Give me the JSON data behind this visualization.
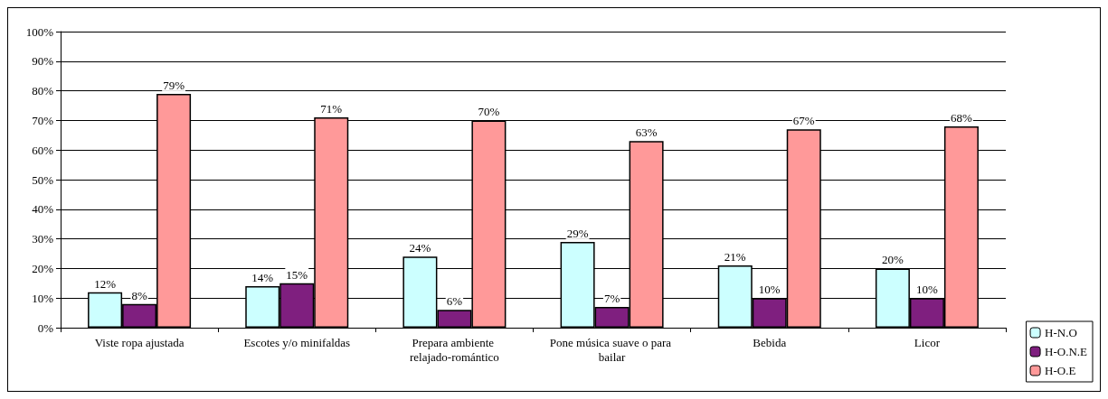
{
  "chart_data": {
    "type": "bar",
    "categories": [
      "Viste ropa ajustada",
      "Escotes y/o minifaldas",
      "Prepara ambiente relajado-romántico",
      "Pone música suave o para bailar",
      "Bebida",
      "Licor"
    ],
    "series": [
      {
        "name": "H-N.O",
        "color": "#ccffff",
        "values": [
          12,
          14,
          24,
          29,
          21,
          20
        ],
        "value_labels": [
          "12%",
          "14%",
          "24%",
          "29%",
          "21%",
          "20%"
        ]
      },
      {
        "name": "H-O.N.E",
        "color": "#7f1f7f",
        "values": [
          8,
          15,
          6,
          7,
          10,
          10
        ],
        "value_labels": [
          "8%",
          "15%",
          "6%",
          "7%",
          "10%",
          "10%"
        ]
      },
      {
        "name": "H-O.E",
        "color": "#ff9999",
        "values": [
          79,
          71,
          70,
          63,
          67,
          68
        ],
        "value_labels": [
          "79%",
          "71%",
          "70%",
          "63%",
          "67%",
          "68%"
        ]
      }
    ],
    "ylim": [
      0,
      100
    ],
    "yticks": [
      {
        "value": 0,
        "label": "0%"
      },
      {
        "value": 10,
        "label": "10%"
      },
      {
        "value": 20,
        "label": "20%"
      },
      {
        "value": 30,
        "label": "30%"
      },
      {
        "value": 40,
        "label": "40%"
      },
      {
        "value": 50,
        "label": "50%"
      },
      {
        "value": 60,
        "label": "60%"
      },
      {
        "value": 70,
        "label": "70%"
      },
      {
        "value": 80,
        "label": "80%"
      },
      {
        "value": 90,
        "label": "90%"
      },
      {
        "value": 100,
        "label": "100%"
      }
    ],
    "grid": "y",
    "legend": "bottom right"
  }
}
